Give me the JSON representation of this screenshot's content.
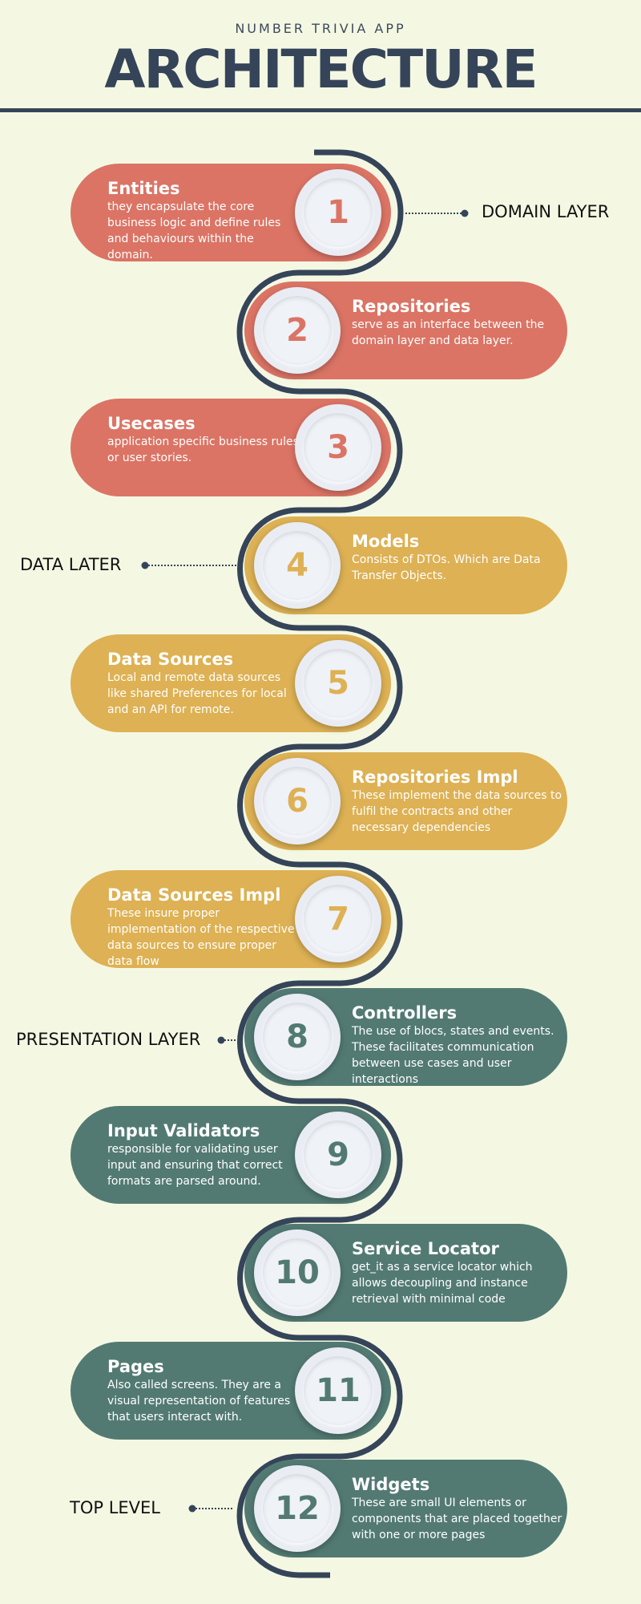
{
  "header": {
    "subtitle": "NUMBER TRIVIA APP",
    "title": "ARCHITECTURE"
  },
  "colors": {
    "background": "#f4f8e3",
    "navy": "#354458",
    "domain": "#db7465",
    "data": "#ddb154",
    "presentation": "#527a73",
    "badge": "#eaedf3"
  },
  "layers": {
    "domain": "DOMAIN LAYER",
    "data": "DATA LATER",
    "presentation": "PRESENTATION LAYER",
    "top": "TOP LEVEL"
  },
  "steps": [
    {
      "num": "1",
      "title": "Entities",
      "desc": "they encapsulate the core business logic and define rules and behaviours within the domain.",
      "layer": "domain"
    },
    {
      "num": "2",
      "title": "Repositories",
      "desc": "serve as an interface between the domain layer and data layer.",
      "layer": "domain"
    },
    {
      "num": "3",
      "title": "Usecases",
      "desc": "application specific business rules or user stories.",
      "layer": "domain"
    },
    {
      "num": "4",
      "title": "Models",
      "desc": "Consists of DTOs. Which are Data Transfer Objects.",
      "layer": "data"
    },
    {
      "num": "5",
      "title": "Data Sources",
      "desc": "Local and remote data sources like shared Preferences for local and an API for remote.",
      "layer": "data"
    },
    {
      "num": "6",
      "title": "Repositories Impl",
      "desc": "These implement the data sources to fulfil the contracts and other necessary dependencies",
      "layer": "data"
    },
    {
      "num": "7",
      "title": "Data Sources Impl",
      "desc": "These insure proper implementation of the respective data sources to ensure proper data flow",
      "layer": "data"
    },
    {
      "num": "8",
      "title": "Controllers",
      "desc": "The use of blocs, states and events. These facilitates communication between use cases and user interactions",
      "layer": "presentation"
    },
    {
      "num": "9",
      "title": "Input Validators",
      "desc": "responsible for validating user input and ensuring that correct formats are parsed around.",
      "layer": "presentation"
    },
    {
      "num": "10",
      "title": "Service Locator",
      "desc": "get_it as a service locator which allows decoupling and instance retrieval with minimal code",
      "layer": "presentation"
    },
    {
      "num": "11",
      "title": "Pages",
      "desc": "Also called screens. They are a visual representation of features that users interact with.",
      "layer": "presentation"
    },
    {
      "num": "12",
      "title": "Widgets",
      "desc": "These are small UI elements or components that are placed together with one or more pages",
      "layer": "presentation"
    }
  ]
}
